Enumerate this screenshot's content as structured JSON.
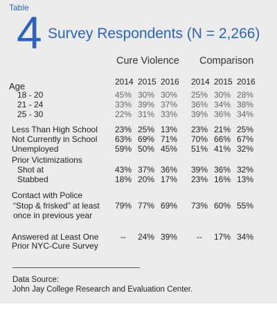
{
  "header": {
    "tag": "Table",
    "number": "4",
    "title": "Survey Respondents (N = 2,266)"
  },
  "groups": [
    "Cure Violence",
    "Comparison"
  ],
  "years": [
    "2014",
    "2015",
    "2016",
    "2014",
    "2015",
    "2016"
  ],
  "rows": [
    {
      "label": "Age",
      "values": []
    },
    {
      "label": "18 - 20",
      "values": [
        "45%",
        "30%",
        "30%",
        "25%",
        "30%",
        "28%"
      ]
    },
    {
      "label": "21 - 24",
      "values": [
        "33%",
        "39%",
        "37%",
        "36%",
        "34%",
        "38%"
      ]
    },
    {
      "label": "25 - 30",
      "values": [
        "22%",
        "31%",
        "33%",
        "39%",
        "36%",
        "34%"
      ]
    },
    {
      "label": "Less Than High School",
      "values": [
        "23%",
        "25%",
        "13%",
        "23%",
        "21%",
        "25%"
      ]
    },
    {
      "label": "Not Currently in School",
      "values": [
        "63%",
        "69%",
        "71%",
        "70%",
        "66%",
        "67%"
      ]
    },
    {
      "label": "Unemployed",
      "values": [
        "59%",
        "50%",
        "45%",
        "51%",
        "41%",
        "32%"
      ]
    },
    {
      "label": "Prior Victimizations",
      "values": []
    },
    {
      "label": "Shot at",
      "values": [
        "43%",
        "37%",
        "36%",
        "39%",
        "36%",
        "32%"
      ]
    },
    {
      "label": "Stabbed",
      "values": [
        "18%",
        "20%",
        "17%",
        "23%",
        "16%",
        "13%"
      ]
    },
    {
      "label": "Contact with Police",
      "values": []
    },
    {
      "label": "“Stop & frisked” at least",
      "values": [
        "79%",
        "77%",
        "69%",
        "73%",
        "60%",
        "55%"
      ]
    },
    {
      "label": "once in previous year",
      "values": []
    },
    {
      "label": "Answered at Least One",
      "values": [
        "--",
        "24%",
        "39%",
        "--",
        "17%",
        "34%"
      ]
    },
    {
      "label": "Prior NYC-Cure Survey",
      "values": []
    }
  ],
  "source": {
    "label": "Data Source:",
    "text": "John Jay College Research and Evaluation Center."
  }
}
